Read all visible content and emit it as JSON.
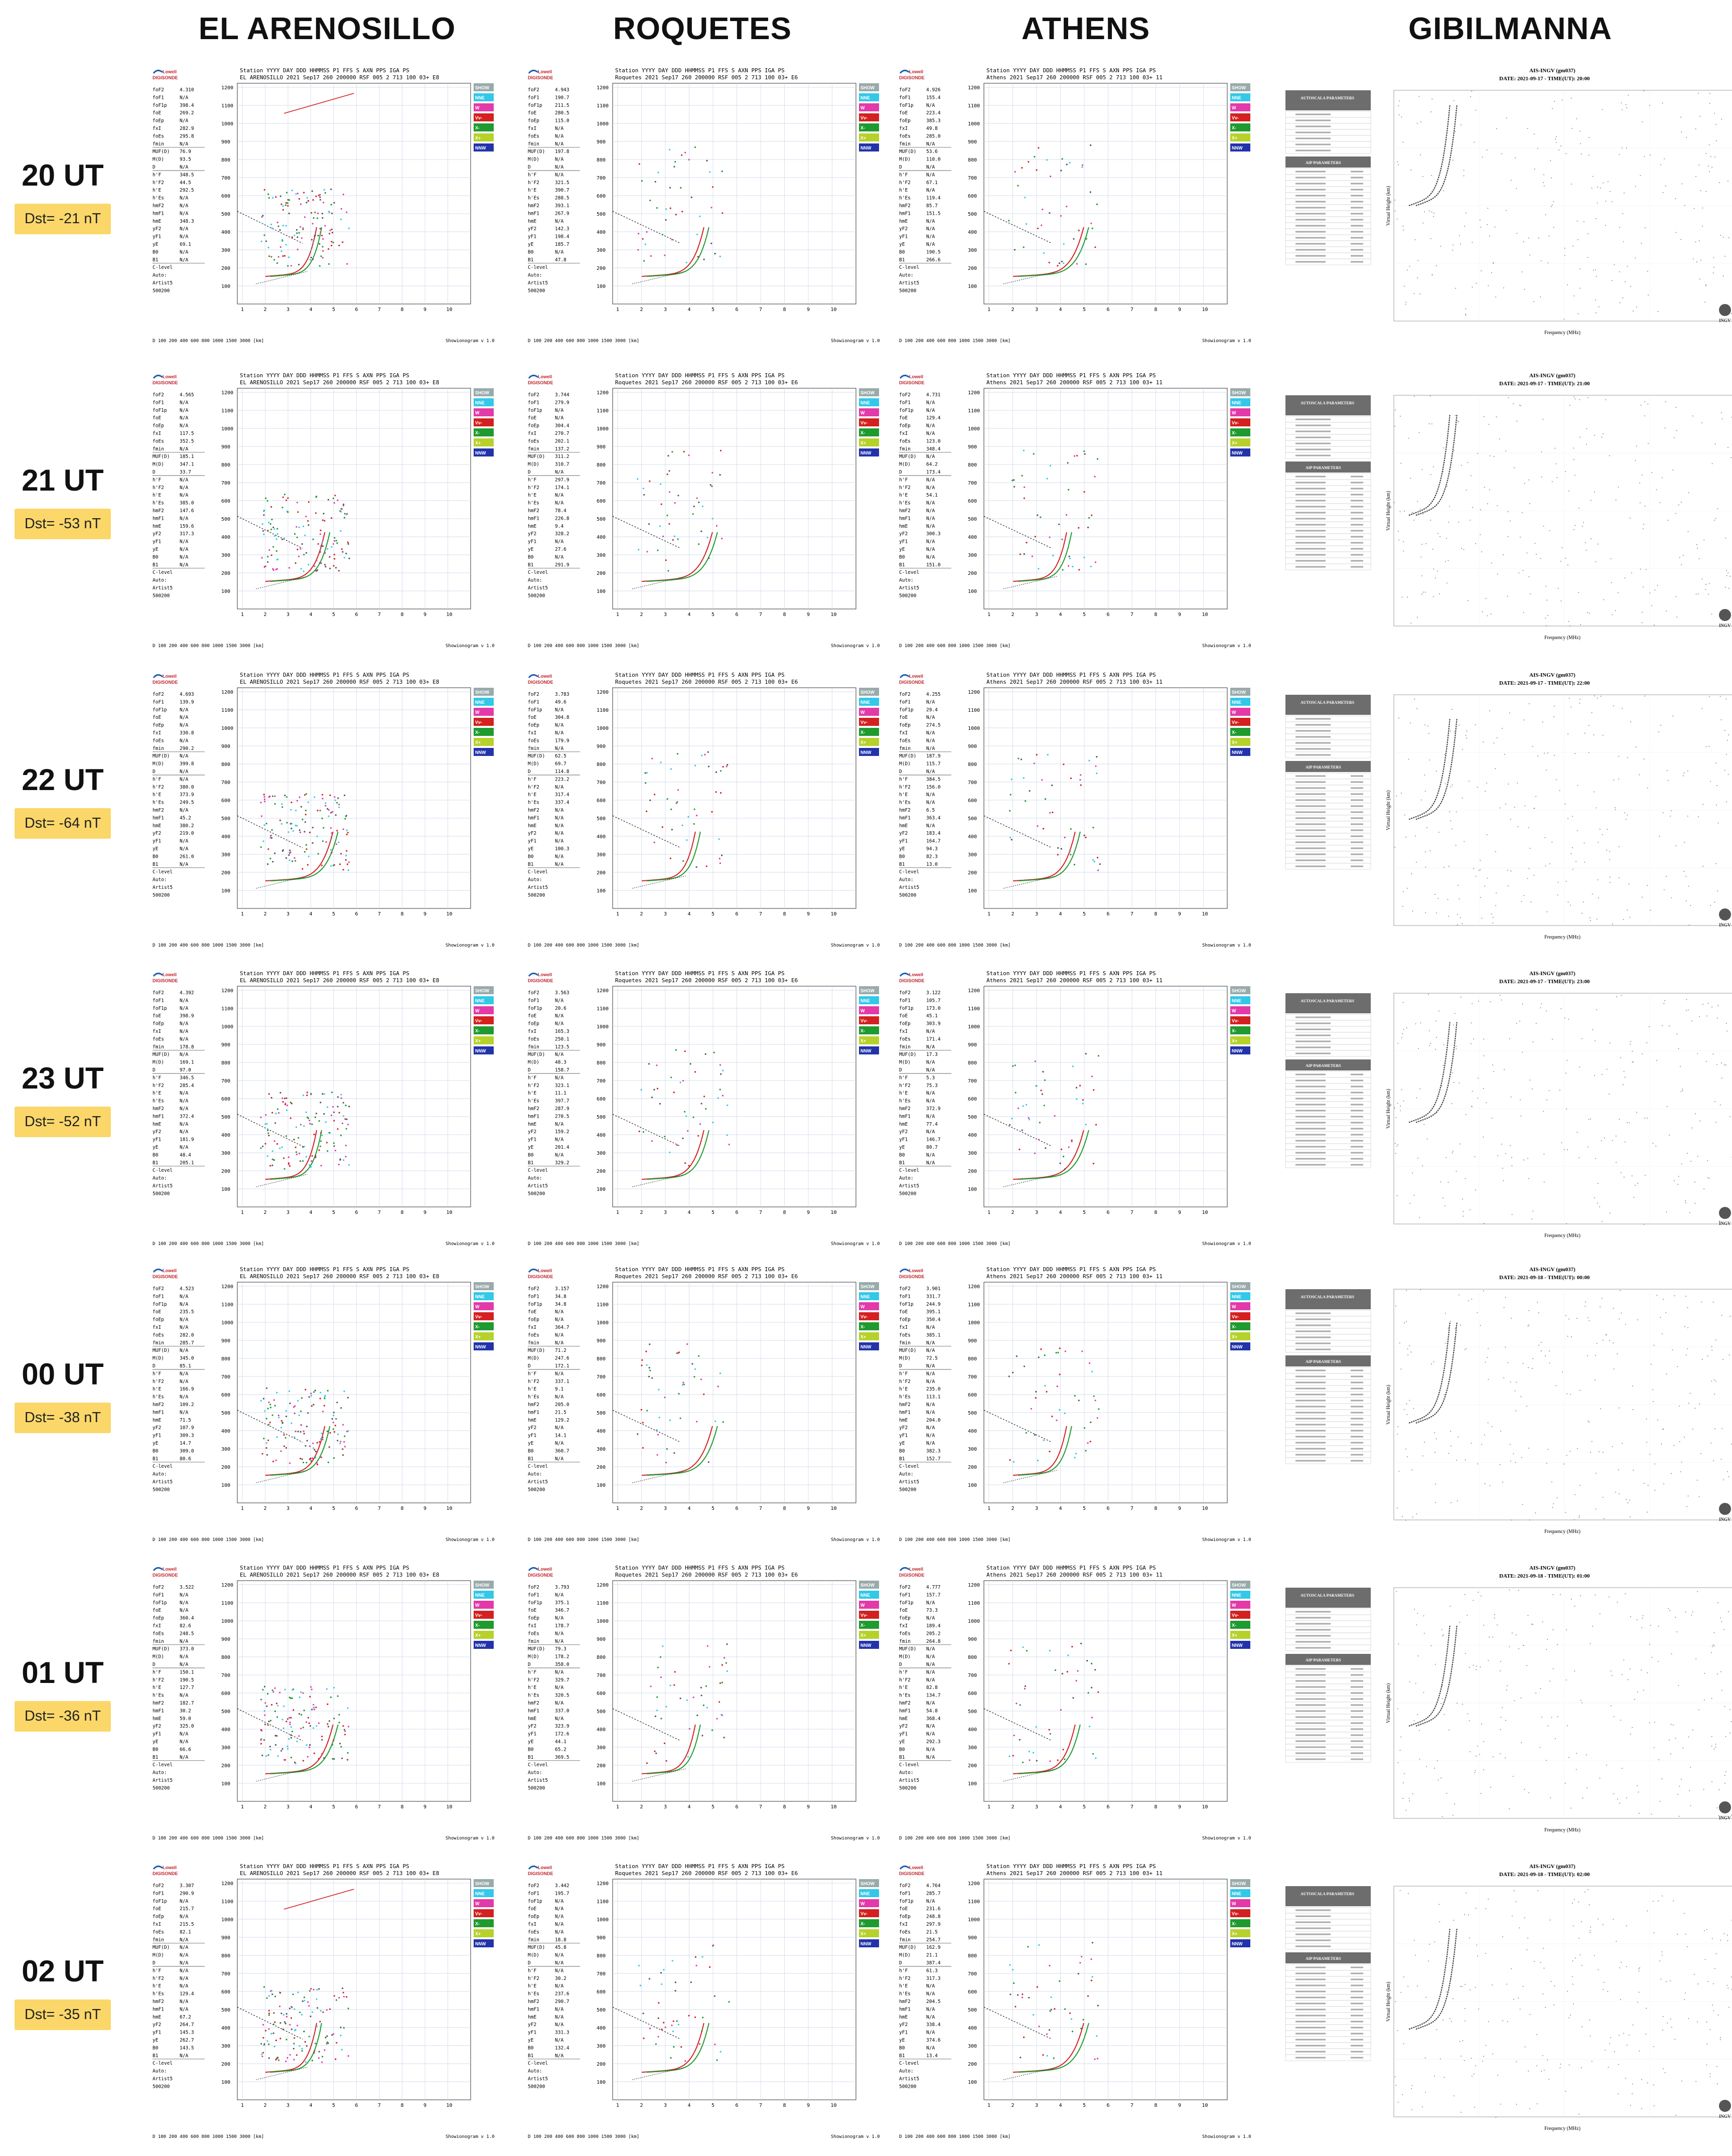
{
  "columns": [
    "EL ARENOSILLO",
    "ROQUETES",
    "ATHENS",
    "GIBILMANNA"
  ],
  "rows": [
    {
      "time": "20 UT",
      "dst": "Dst= -21 nT",
      "ais_time": "2021-09-17 - TIME(UT): 20:00"
    },
    {
      "time": "21 UT",
      "dst": "Dst= -53 nT",
      "ais_time": "2021-09-17 - TIME(UT): 21:00"
    },
    {
      "time": "22 UT",
      "dst": "Dst= -64 nT",
      "ais_time": "2021-09-17 - TIME(UT): 22:00"
    },
    {
      "time": "23 UT",
      "dst": "Dst= -52 nT",
      "ais_time": "2021-09-17 - TIME(UT): 23:00"
    },
    {
      "time": "00 UT",
      "dst": "Dst= -38 nT",
      "ais_time": "2021-09-18 - TIME(UT): 00:00"
    },
    {
      "time": "01 UT",
      "dst": "Dst= -36 nT",
      "ais_time": "2021-09-18 - TIME(UT): 01:00"
    },
    {
      "time": "02 UT",
      "dst": "Dst= -35 nT",
      "ais_time": "2021-09-18 - TIME(UT): 02:00"
    }
  ],
  "ionogram": {
    "header": "Station   YYYY DAY   DDD HHMMSS P1 FFS S AXN PPS IGA PS",
    "logo_top": "Lowell",
    "logo_bottom": "DIGISONDE",
    "y_ticks": [
      "1200",
      "1100",
      "1000",
      "900",
      "800",
      "700",
      "600",
      "500",
      "400",
      "300",
      "200",
      "100"
    ],
    "x_ticks": [
      "1",
      "2",
      "3",
      "4",
      "5",
      "6",
      "7",
      "8",
      "9",
      "10"
    ],
    "params": [
      "foF2",
      "foF1",
      "foF1p",
      "foE",
      "foEp",
      "fxI",
      "foEs",
      "fmin",
      "MUF(D)",
      "M(D)",
      "D",
      "h'F",
      "h'F2",
      "h'E",
      "h'Es",
      "hmF2",
      "hmF1",
      "hmE",
      "yF2",
      "yF1",
      "yE",
      "B0",
      "B1",
      "C-level",
      "Auto:",
      "Artist5",
      "500200"
    ],
    "legend": [
      "SHOW",
      "NNE",
      "W",
      "Vv-",
      "X-",
      "X+",
      "NNW"
    ],
    "footer_left": "Showionogram v 1.0"
  },
  "ais": {
    "title": "AIS-INGV (gm037)",
    "date_prefix": "DATE:",
    "box1_title": "AUTOSCALA PARAMETERS",
    "box2_title": "AIP PARAMETERS",
    "xlabel": "Frequency (MHz)",
    "ylabel": "Virtual Height (km)",
    "logo": "INGV"
  },
  "station_lines": {
    "EL ARENOSILLO": "EL ARENOSILLO 2021 Sep17 260 200000 RSF 005 2 713 100 03+ E8",
    "ROQUETES": "Roquetes 2021 Sep17 260 200000 RSF 005 2 713 100 03+ E6",
    "ATHENS": "Athens 2021 Sep17 260 200000 RSF 005 2 713 100 03+ 11"
  },
  "colors": {
    "dst_box": "#fbd76a",
    "red": "#d42020",
    "green": "#1f9a2f",
    "gray": "#444444",
    "cyan": "#33c8e8",
    "magenta": "#e23aa8"
  }
}
